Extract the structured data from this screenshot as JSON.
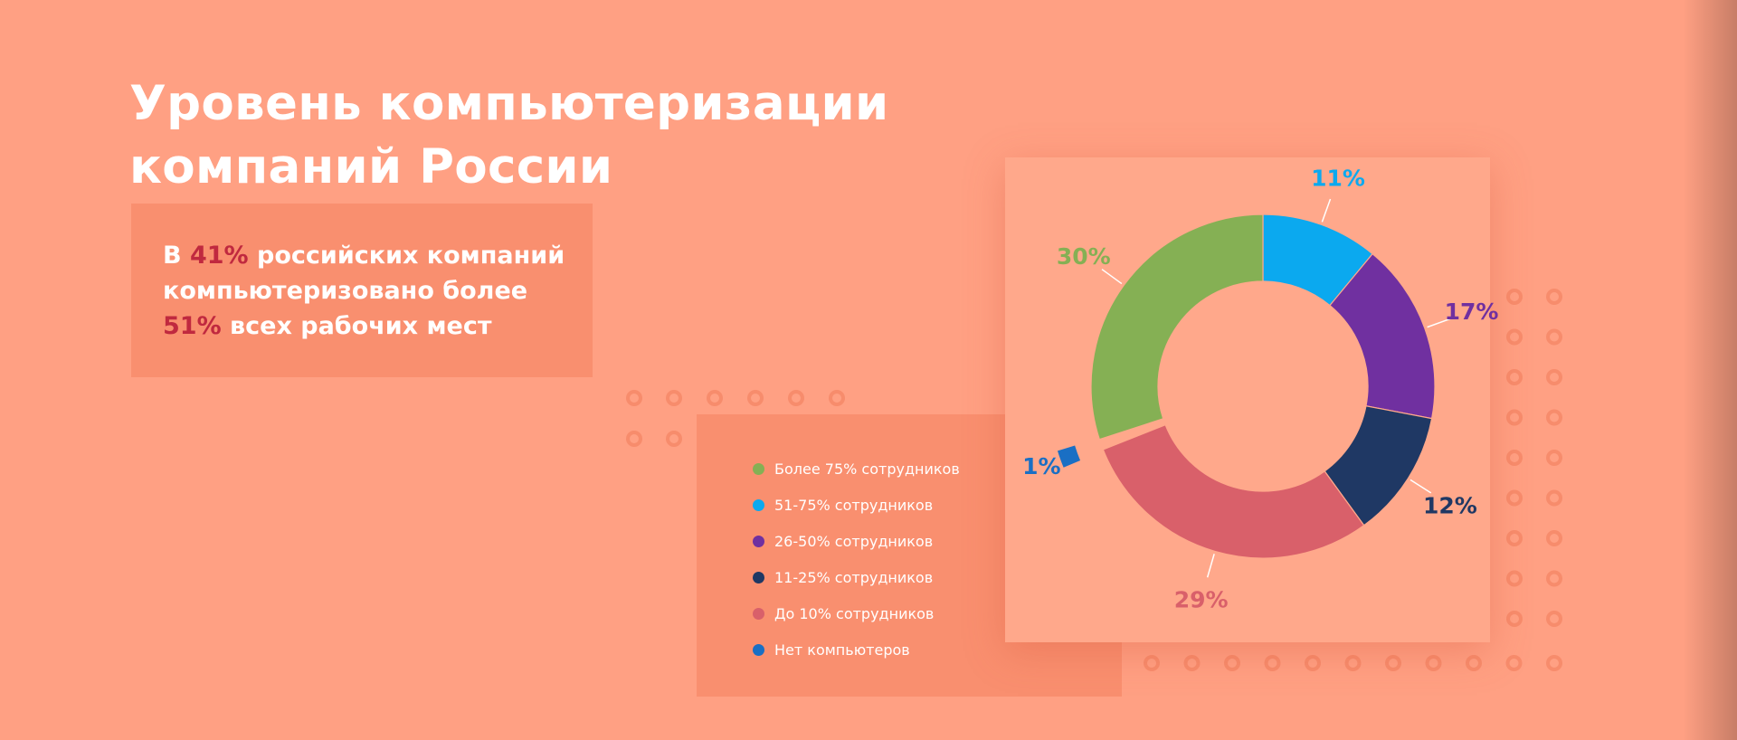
{
  "title": {
    "line1": "Уровень компьютеризации",
    "line2": "компаний России"
  },
  "stat": {
    "line1_pre": "В ",
    "line1_hl": "41%",
    "line1_post": " российских компаний",
    "line2": "компьютеризовано более",
    "line3_hl": "51%",
    "line3_post": " всех рабочих мест"
  },
  "colors": {
    "background": "#ffa083",
    "highlight": "#c0293f",
    "ring_hole": "#ffa88b"
  },
  "chart_data": {
    "type": "pie",
    "subtype": "donut",
    "title": "",
    "unit": "%",
    "series": [
      {
        "name": "51-75% сотрудников",
        "value": 11,
        "label": "11%",
        "color": "#0ba9ef"
      },
      {
        "name": "26-50% сотрудников",
        "value": 17,
        "label": "17%",
        "color": "#7030a0"
      },
      {
        "name": "11-25% сотрудников",
        "value": 12,
        "label": "12%",
        "color": "#1f3864"
      },
      {
        "name": "До 10% сотрудников",
        "value": 29,
        "label": "29%",
        "color": "#d9606a"
      },
      {
        "name": "Нет компьютеров",
        "value": 1,
        "label": "1%",
        "color": "#1a6fc4",
        "exploded": true
      },
      {
        "name": "Более 75% сотрудников",
        "value": 30,
        "label": "30%",
        "color": "#85b054"
      }
    ],
    "legend": {
      "placement": "left",
      "items": [
        {
          "label": "Более 75% сотрудников",
          "color": "#85b054"
        },
        {
          "label": "51-75% сотрудников",
          "color": "#0ba9ef"
        },
        {
          "label": "26-50% сотрудников",
          "color": "#7030a0"
        },
        {
          "label": "11-25% сотрудников",
          "color": "#1f3864"
        },
        {
          "label": "До 10% сотрудников",
          "color": "#d9606a"
        },
        {
          "label": "Нет компьютеров",
          "color": "#1a6fc4"
        }
      ]
    }
  }
}
